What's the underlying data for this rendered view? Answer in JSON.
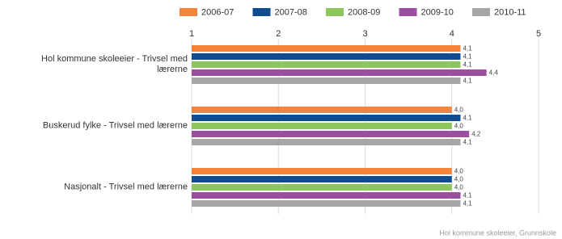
{
  "chart_data": {
    "type": "bar",
    "orientation": "horizontal",
    "categories": [
      "Hol kommune skoleeier - Trivsel med lærerne",
      "Buskerud fylke - Trivsel med lærerne",
      "Nasjonalt - Trivsel med lærerne"
    ],
    "series": [
      {
        "name": "2006-07",
        "color": "#f5843a",
        "values": [
          4.1,
          4.0,
          4.0
        ],
        "value_labels": [
          "4,1",
          "4,0",
          "4,0"
        ]
      },
      {
        "name": "2007-08",
        "color": "#0f4b8f",
        "values": [
          4.1,
          4.1,
          4.0
        ],
        "value_labels": [
          "4,1",
          "4,1",
          "4,0"
        ]
      },
      {
        "name": "2008-09",
        "color": "#8cc65c",
        "values": [
          4.1,
          4.0,
          4.0
        ],
        "value_labels": [
          "4,1",
          "4,0",
          "4,0"
        ]
      },
      {
        "name": "2009-10",
        "color": "#9b4f9e",
        "values": [
          4.4,
          4.2,
          4.1
        ],
        "value_labels": [
          "4,4",
          "4,2",
          "4,1"
        ]
      },
      {
        "name": "2010-11",
        "color": "#a6a6a6",
        "values": [
          4.1,
          4.1,
          4.1
        ],
        "value_labels": [
          "4,1",
          "4,1",
          "4,1"
        ]
      }
    ],
    "xlim": [
      1,
      5
    ],
    "xticks": [
      1,
      2,
      3,
      4,
      5
    ],
    "grid": true,
    "source": "Hol kommune skoleeier, Grunnskole"
  }
}
